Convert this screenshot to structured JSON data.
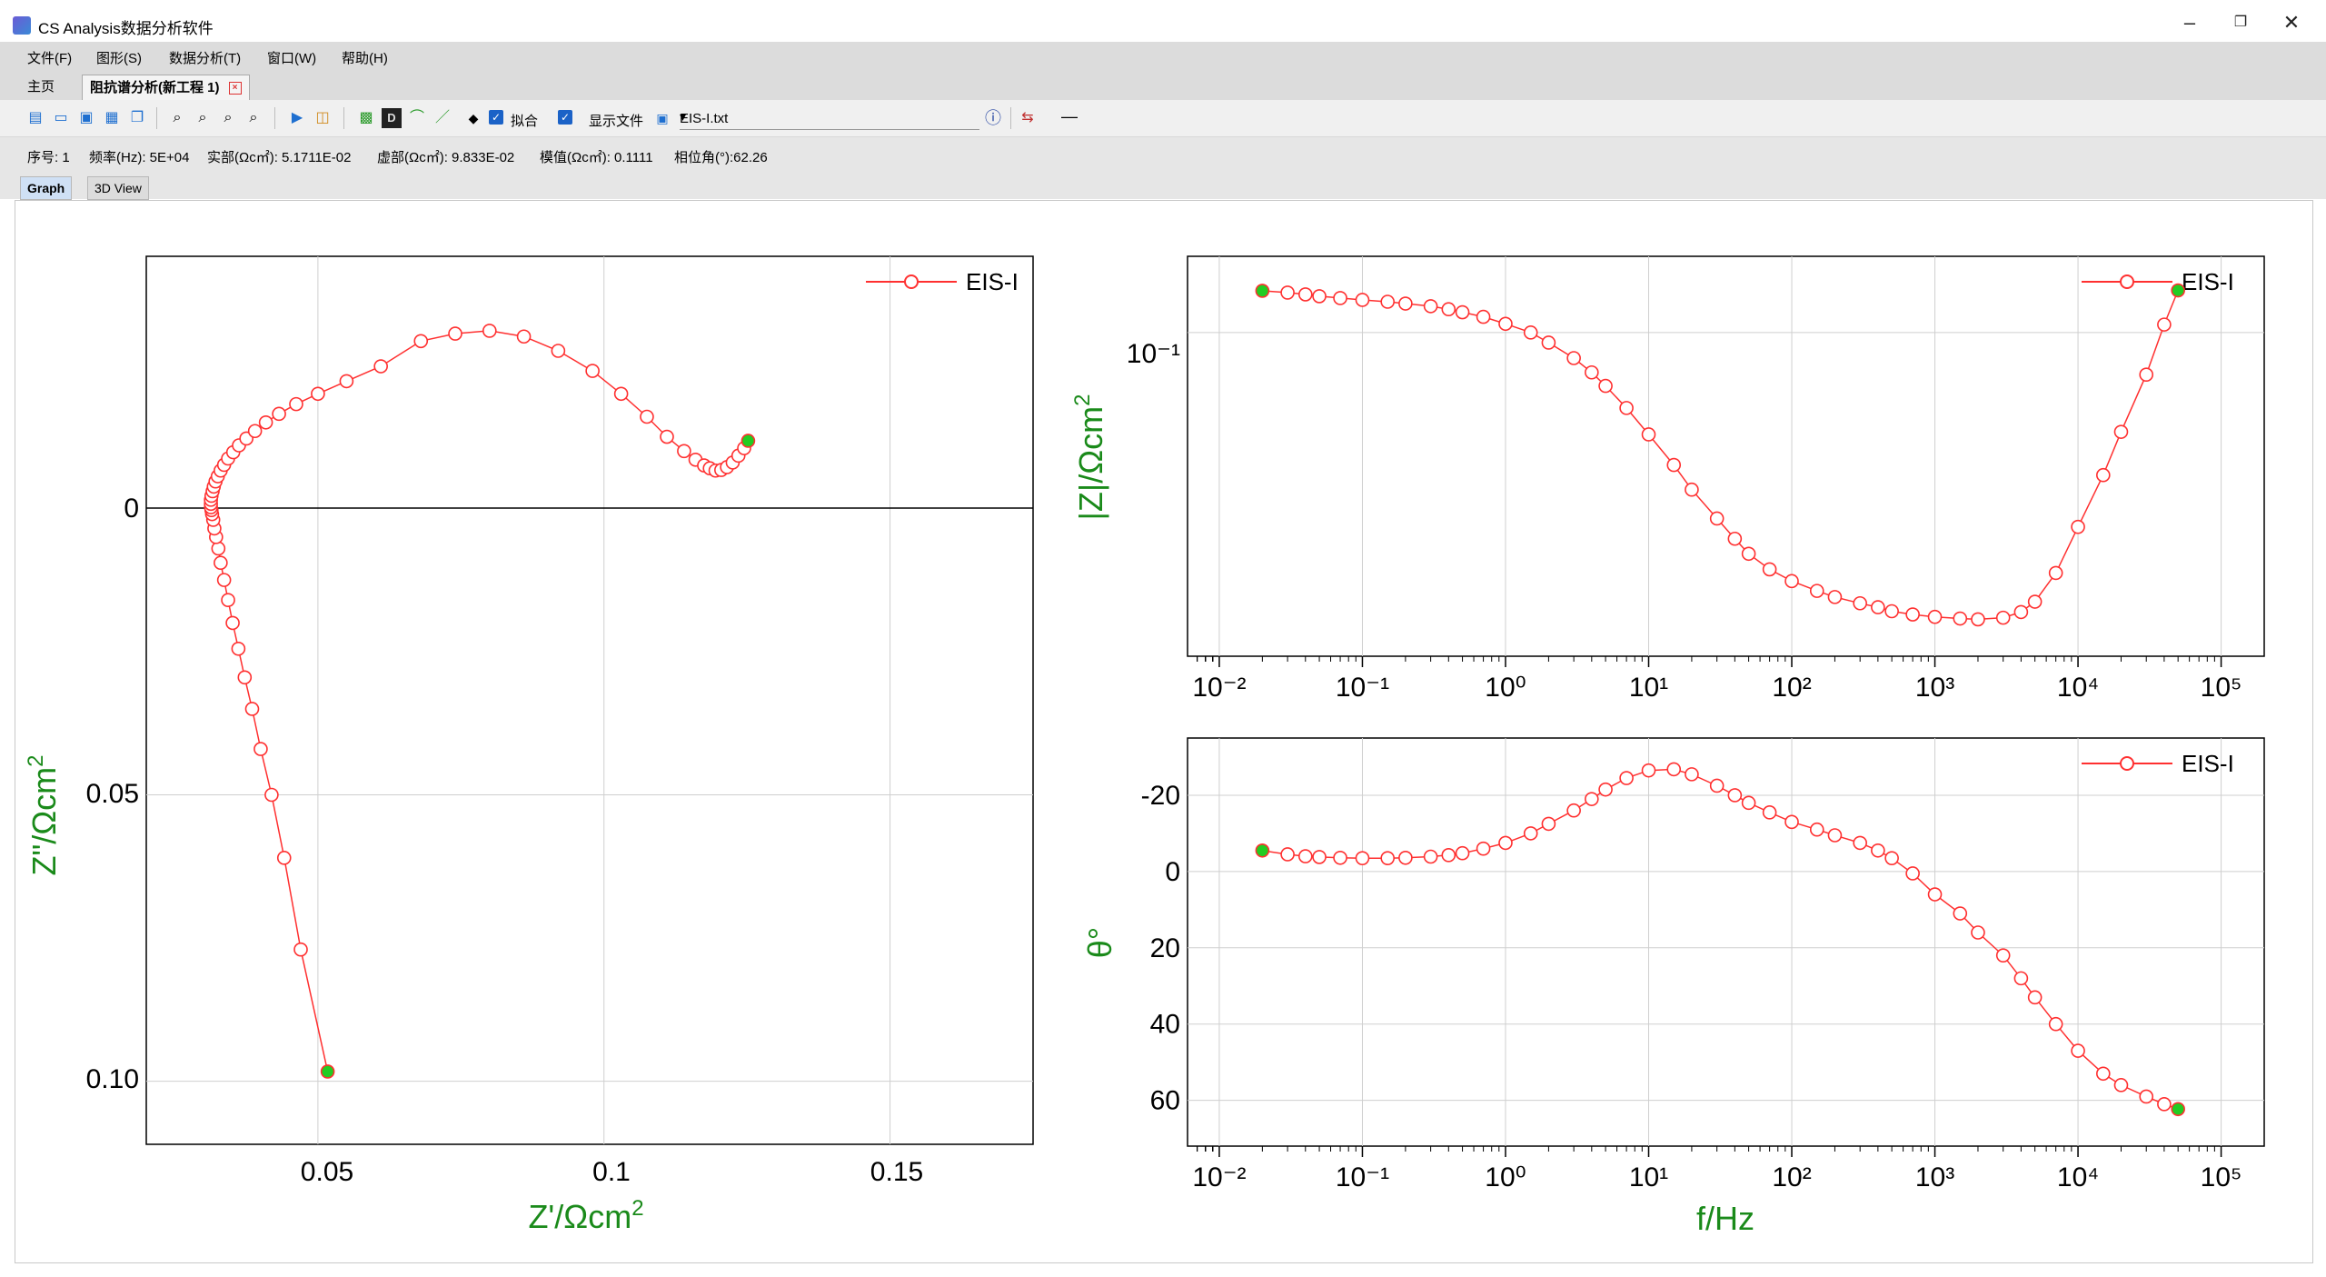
{
  "window": {
    "title": "CS Analysis数据分析软件"
  },
  "menu": [
    "文件(F)",
    "图形(S)",
    "数据分析(T)",
    "窗口(W)",
    "帮助(H)"
  ],
  "doc_tabs": {
    "home": "主页",
    "active": "阻抗谱分析(新工程 1)"
  },
  "toolbar": {
    "fit_label": "拟合",
    "show_file_label": "显示文件",
    "file_value": "EIS-I.txt",
    "dash": "—"
  },
  "status": {
    "index": "序号: 1",
    "freq": "频率(Hz): 5E+04",
    "real": "实部(Ωc㎡): 5.1711E-02",
    "imag": "虚部(Ωc㎡): 9.833E-02",
    "modulus": "模值(Ωc㎡): 0.1111",
    "phase": "相位角(°):62.26"
  },
  "view_tabs": [
    "Graph",
    "3D View"
  ],
  "chart_data": [
    {
      "type": "scatter",
      "name": "nyquist",
      "xlabel": "Z'/Ωcm",
      "ylabel": "Z\"/Ωcm",
      "xlim": [
        0.02,
        0.175
      ],
      "ylim": [
        -0.044,
        0.111
      ],
      "y_inverted": true,
      "x_ticks": [
        "0.05",
        "0.1",
        "0.15"
      ],
      "y_ticks": [
        "0",
        "0.05",
        "0.10"
      ],
      "legend": "EIS-I",
      "legend_position": "top-right",
      "grid": true,
      "series_color": "#ff3030",
      "endpoint_color": "#22cc22",
      "series": [
        {
          "name": "EIS-I",
          "x": [
            0.0517,
            0.047,
            0.0441,
            0.0419,
            0.04,
            0.0385,
            0.0372,
            0.0361,
            0.0351,
            0.0343,
            0.0336,
            0.033,
            0.0326,
            0.0322,
            0.0319,
            0.0317,
            0.0315,
            0.0314,
            0.0313,
            0.0313,
            0.0313,
            0.0314,
            0.0316,
            0.0318,
            0.0321,
            0.0325,
            0.033,
            0.0336,
            0.0343,
            0.0352,
            0.0362,
            0.0375,
            0.039,
            0.0409,
            0.0432,
            0.0462,
            0.05,
            0.055,
            0.061,
            0.068,
            0.074,
            0.08,
            0.086,
            0.092,
            0.098,
            0.103,
            0.1075,
            0.111,
            0.114,
            0.116,
            0.1175,
            0.1185,
            0.1195,
            0.1205,
            0.1215,
            0.1225,
            0.1235,
            0.1245,
            0.1252
          ],
          "y": [
            0.0983,
            0.077,
            0.061,
            0.05,
            0.042,
            0.035,
            0.0295,
            0.0245,
            0.02,
            0.016,
            0.0125,
            0.0095,
            0.007,
            0.005,
            0.0035,
            0.002,
            0.001,
            0.0003,
            -0.0002,
            -0.0008,
            -0.0015,
            -0.0022,
            -0.003,
            -0.0038,
            -0.0047,
            -0.0056,
            -0.0066,
            -0.0076,
            -0.0087,
            -0.0098,
            -0.011,
            -0.0122,
            -0.0135,
            -0.015,
            -0.0165,
            -0.0182,
            -0.02,
            -0.0222,
            -0.0248,
            -0.0292,
            -0.0305,
            -0.031,
            -0.03,
            -0.0275,
            -0.024,
            -0.02,
            -0.016,
            -0.0125,
            -0.01,
            -0.0085,
            -0.0075,
            -0.007,
            -0.0066,
            -0.0067,
            -0.0072,
            -0.008,
            -0.0092,
            -0.0105,
            -0.0118
          ]
        }
      ]
    },
    {
      "type": "line",
      "name": "bode-modulus",
      "xlabel": "f/Hz",
      "ylabel": "|Z|/Ωcm",
      "x_scale": "log",
      "y_scale": "log",
      "xlim": [
        0.006,
        200000
      ],
      "ylim": [
        0.0445,
        0.121
      ],
      "y_ticks": [
        "10⁻¹"
      ],
      "legend": "EIS-I",
      "legend_position": "top-right",
      "grid": true,
      "series": [
        {
          "name": "EIS-I",
          "x": [
            0.02,
            0.03,
            0.04,
            0.05,
            0.07,
            0.1,
            0.15,
            0.2,
            0.3,
            0.4,
            0.5,
            0.7,
            1,
            1.5,
            2,
            3,
            4,
            5,
            7,
            10,
            15,
            20,
            30,
            40,
            50,
            70,
            100,
            150,
            200,
            300,
            400,
            500,
            700,
            1000,
            1500,
            2000,
            3000,
            4000,
            5000,
            7000,
            10000,
            15000,
            20000,
            30000,
            40000,
            50000
          ],
          "y": [
            0.111,
            0.1105,
            0.11,
            0.1095,
            0.109,
            0.1085,
            0.108,
            0.1075,
            0.1068,
            0.106,
            0.1052,
            0.104,
            0.1022,
            0.1,
            0.0975,
            0.0938,
            0.0905,
            0.0875,
            0.0828,
            0.0775,
            0.0718,
            0.0675,
            0.0628,
            0.0597,
            0.0575,
            0.0553,
            0.0537,
            0.0524,
            0.0516,
            0.0508,
            0.0503,
            0.0498,
            0.0494,
            0.0491,
            0.0489,
            0.0488,
            0.049,
            0.0497,
            0.051,
            0.0548,
            0.0615,
            0.07,
            0.078,
            0.09,
            0.102,
            0.1111
          ]
        }
      ]
    },
    {
      "type": "line",
      "name": "bode-phase",
      "xlabel": "f/Hz",
      "ylabel": "θ°",
      "x_scale": "log",
      "xlim": [
        0.006,
        200000
      ],
      "ylim": [
        -35,
        72
      ],
      "y_inverted": true,
      "y_ticks": [
        "-20",
        "0",
        "20",
        "40",
        "60"
      ],
      "x_ticks": [
        "10⁻²",
        "10⁻¹",
        "10⁰",
        "10¹",
        "10²",
        "10³",
        "10⁴",
        "10⁵"
      ],
      "legend": "EIS-I",
      "legend_position": "top-right",
      "grid": true,
      "series": [
        {
          "name": "EIS-I",
          "x": [
            0.02,
            0.03,
            0.04,
            0.05,
            0.07,
            0.1,
            0.15,
            0.2,
            0.3,
            0.4,
            0.5,
            0.7,
            1,
            1.5,
            2,
            3,
            4,
            5,
            7,
            10,
            15,
            20,
            30,
            40,
            50,
            70,
            100,
            150,
            200,
            300,
            400,
            500,
            700,
            1000,
            1500,
            2000,
            3000,
            4000,
            5000,
            7000,
            10000,
            15000,
            20000,
            30000,
            40000,
            50000
          ],
          "y": [
            -5.5,
            -4.5,
            -4.0,
            -3.8,
            -3.6,
            -3.5,
            -3.5,
            -3.6,
            -3.9,
            -4.3,
            -4.8,
            -6.0,
            -7.5,
            -10,
            -12.5,
            -16,
            -19,
            -21.5,
            -24.5,
            -26.5,
            -26.8,
            -25.5,
            -22.5,
            -20,
            -18,
            -15.5,
            -13,
            -11,
            -9.5,
            -7.5,
            -5.5,
            -3.5,
            0.5,
            6,
            11,
            16,
            22,
            28,
            33,
            40,
            47,
            53,
            56,
            59,
            61,
            62.3
          ]
        }
      ]
    }
  ]
}
